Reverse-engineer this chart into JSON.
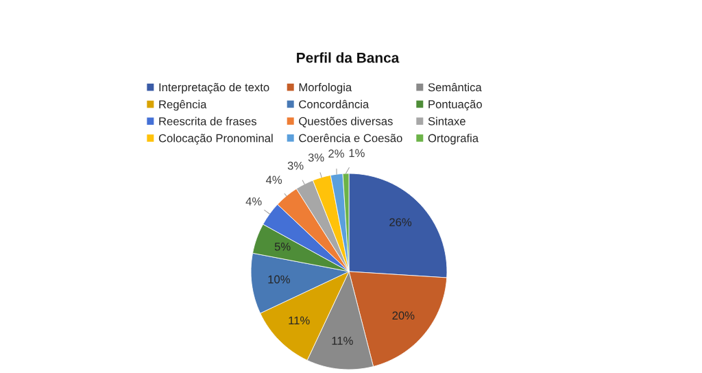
{
  "chart_data": {
    "type": "pie",
    "title": "Perfil da Banca",
    "categories": [
      "Interpretação de texto",
      "Morfologia",
      "Semântica",
      "Regência",
      "Concordância",
      "Pontuação",
      "Reescrita de frases",
      "Questões diversas",
      "Sintaxe",
      "Colocação Pronominal",
      "Coerência e Coesão",
      "Ortografia"
    ],
    "values": [
      26,
      20,
      11,
      11,
      10,
      5,
      4,
      4,
      3,
      3,
      2,
      1
    ],
    "colors": [
      "#3a5ba6",
      "#c55e28",
      "#8a8a8a",
      "#d9a300",
      "#4879b5",
      "#4e8d38",
      "#4470d6",
      "#ee7d35",
      "#a7a7a7",
      "#ffc20a",
      "#5b9fdc",
      "#6cb348"
    ],
    "value_labels": [
      "26%",
      "20%",
      "11%",
      "11%",
      "10%",
      "5%",
      "4%",
      "4%",
      "3%",
      "3%",
      "2%",
      "1%"
    ],
    "legend": "top"
  }
}
